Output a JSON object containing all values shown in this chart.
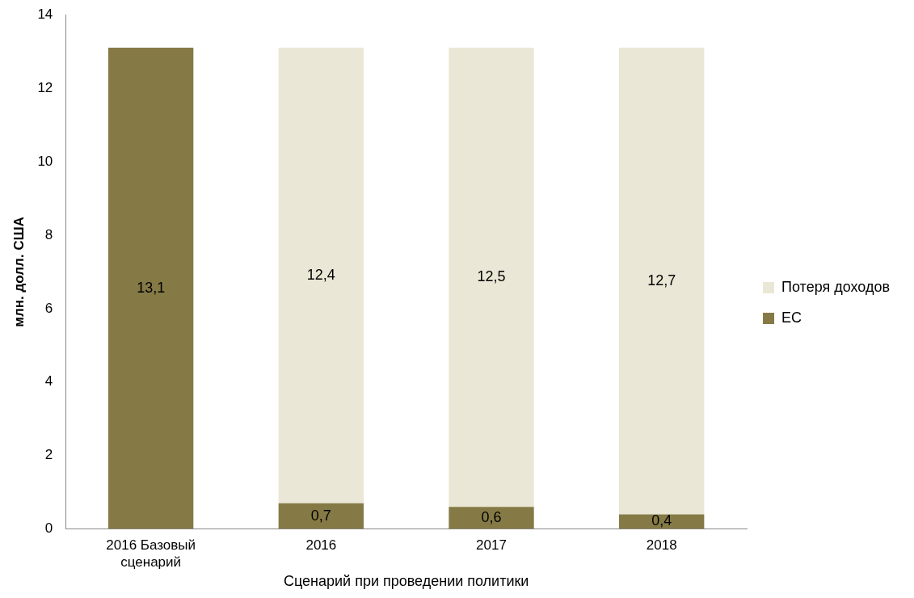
{
  "chart_data": {
    "type": "bar",
    "stacked": true,
    "xlabel": "Сценарий при проведении политики",
    "ylabel": "млн. долл. США",
    "categories": [
      "2016 Базовый сценарий",
      "2016",
      "2017",
      "2018"
    ],
    "series": [
      {
        "name": "ЕС",
        "color": "#857a45",
        "values": [
          13.1,
          0.7,
          0.6,
          0.4
        ],
        "value_labels": [
          "13,1",
          "0,7",
          "0,6",
          "0,4"
        ]
      },
      {
        "name": "Потеря доходов",
        "color": "#ebe7d6",
        "values": [
          null,
          12.4,
          12.5,
          12.7
        ],
        "value_labels": [
          null,
          "12,4",
          "12,5",
          "12,7"
        ]
      }
    ],
    "ylim": [
      0,
      14
    ],
    "yticks": [
      0,
      2,
      4,
      6,
      8,
      10,
      12,
      14
    ],
    "grid": false,
    "legend": "right"
  }
}
